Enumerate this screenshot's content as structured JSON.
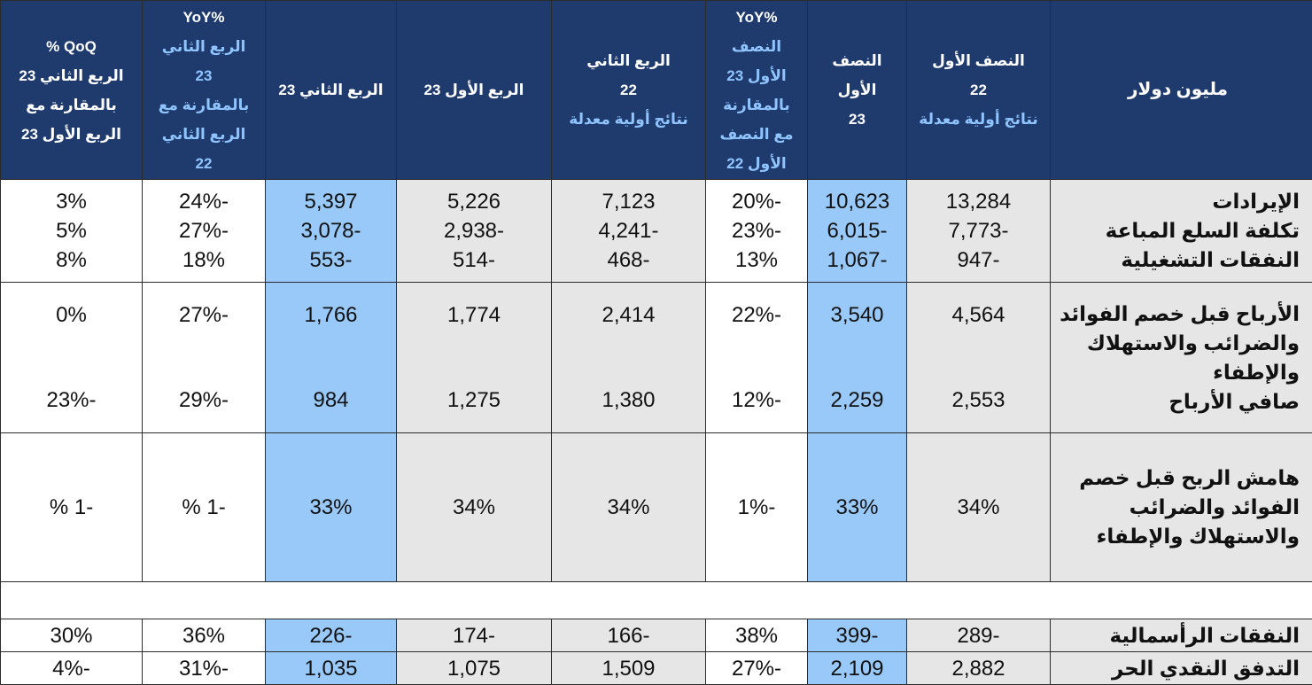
{
  "header": {
    "label": "مليون دولار",
    "h1_col": [
      "النصف الأول",
      "22"
    ],
    "h1_col_note": "نتائج أولية معدلة",
    "h1_23": [
      "النصف",
      "الأول",
      "23"
    ],
    "h1_yoy_title": "%YoY",
    "h1_yoy_lines": [
      "النصف",
      "الأول 23",
      "بالمقارنة",
      "مع النصف",
      "الأول 22"
    ],
    "q2_22": [
      "الربع الثاني",
      "22"
    ],
    "q2_22_note": "نتائج أولية معدلة",
    "q1_23": "الربع الأول 23",
    "q2_23": "الربع الثاني 23",
    "q2_yoy_title": "%YoY",
    "q2_yoy_lines": [
      "الربع الثاني",
      "23",
      "بالمقارنة مع",
      "الربع الثاني",
      "22"
    ],
    "qoq_lines": [
      "QoQ %",
      "الربع الثاني 23",
      "بالمقارنة مع",
      "الربع الأول 23"
    ]
  },
  "rows": {
    "revenue": {
      "label": "الإيرادات",
      "v": [
        "13,284",
        "10,623",
        "-20%",
        "7,123",
        "5,226",
        "5,397",
        "-24%",
        "3%"
      ]
    },
    "cogs": {
      "label": "تكلفة السلع المباعة",
      "v": [
        "-7,773",
        "-6,015",
        "-23%",
        "-4,241",
        "-2,938",
        "-3,078",
        "-27%",
        "5%"
      ]
    },
    "opex": {
      "label": "النفقات التشغيلية",
      "v": [
        "-947",
        "-1,067",
        "13%",
        "-468",
        "-514",
        "-553",
        "18%",
        "8%"
      ]
    },
    "ebitda": {
      "label_lines": [
        "الأرباح قبل خصم الفوائد",
        "والضرائب والاستهلاك",
        "والإطفاء"
      ],
      "v": [
        "4,564",
        "3,540",
        "-22%",
        "2,414",
        "1,774",
        "1,766",
        "-27%",
        "0%"
      ]
    },
    "net_profit": {
      "label": "صافي الأرباح",
      "v": [
        "2,553",
        "2,259",
        "-12%",
        "1,380",
        "1,275",
        "984",
        "-29%",
        "-23%"
      ]
    },
    "ebitda_margin": {
      "label_lines": [
        "هامش الربح قبل خصم",
        "الفوائد والضرائب",
        "والاستهلاك والإطفاء"
      ],
      "v": [
        "34%",
        "33%",
        "-1%",
        "34%",
        "34%",
        "33%",
        "-1 %",
        "-1 %"
      ]
    },
    "capex": {
      "label": "النفقات الرأسمالية",
      "v": [
        "-289",
        "-399",
        "38%",
        "-166",
        "-174",
        "-226",
        "36%",
        "30%"
      ]
    },
    "fcf": {
      "label": "التدفق النقدي الحر",
      "v": [
        "2,882",
        "2,109",
        "-27%",
        "1,509",
        "1,075",
        "1,035",
        "-31%",
        "-4%"
      ]
    }
  },
  "colors": {
    "header_bg": "#1f3b6e",
    "header_note": "#8fc4ff",
    "highlight": "#99c9f9",
    "grey": "#e6e6e6"
  }
}
